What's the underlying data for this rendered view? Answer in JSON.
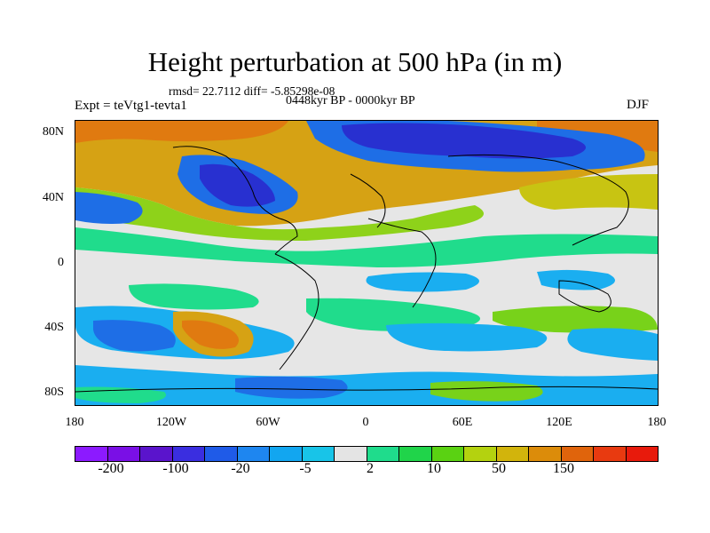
{
  "title": "Height perturbation at 500 hPa (in m)",
  "stats_line": "rmsd= 22.7112 diff= -5.85298e-08",
  "period": "0448kyr BP - 0000kyr BP",
  "experiment": "Expt = teVtg1-tevta1",
  "season": "DJF",
  "y_ticks": [
    "80N",
    "40N",
    "0",
    "40S",
    "80S"
  ],
  "x_ticks": [
    "180",
    "120W",
    "60W",
    "0",
    "60E",
    "120E",
    "180"
  ],
  "colorbar": {
    "colors": [
      "#8c1aff",
      "#7a0fe6",
      "#5a14cc",
      "#3a2ee0",
      "#1f5be8",
      "#1e86f0",
      "#12a6f0",
      "#18c4e8",
      "#e4e4e4",
      "#1fdc8c",
      "#20d44a",
      "#5ad212",
      "#b4d20f",
      "#d2b40c",
      "#dc8c0a",
      "#e0640c",
      "#e83a10",
      "#e81a0c"
    ],
    "labels": [
      "-200",
      "-100",
      "-20",
      "-5",
      "2",
      "10",
      "50",
      "150"
    ]
  },
  "colors": {
    "deep_neg": "#2830d0",
    "mid_neg": "#1e6ee6",
    "weak_neg": "#1aaef0",
    "near_zero": "#e6e6e6",
    "weak_pos": "#20dc8c",
    "mid_pos": "#78d21a",
    "strong_pos": "#d2a612",
    "very_strong_pos": "#e07a10"
  }
}
